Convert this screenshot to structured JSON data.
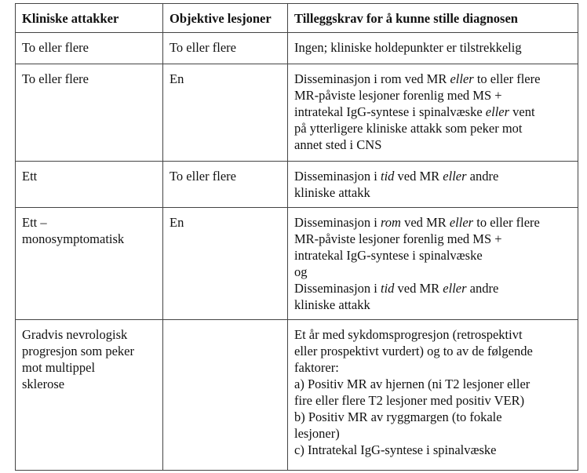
{
  "headers": [
    "Kliniske attakker",
    "Objektive lesjoner",
    "Tilleggskrav for å kunne stille diagnosen"
  ],
  "rows": [
    {
      "attacks": [
        "To eller flere"
      ],
      "lesions": "To eller flere",
      "requirement": [
        [
          {
            "t": "Ingen; kliniske holdepunkter er tilstrekkelig"
          }
        ]
      ]
    },
    {
      "attacks": [
        "To eller flere"
      ],
      "lesions": "En",
      "requirement": [
        [
          {
            "t": "Disseminasjon i rom ved MR "
          },
          {
            "t": "eller",
            "i": true
          },
          {
            "t": " to eller flere"
          }
        ],
        [
          {
            "t": "MR-påviste lesjoner forenlig med MS +"
          }
        ],
        [
          {
            "t": "intratekal IgG-syntese i spinalvæske "
          },
          {
            "t": "eller",
            "i": true
          },
          {
            "t": " vent"
          }
        ],
        [
          {
            "t": "på ytterligere kliniske attakk som peker mot"
          }
        ],
        [
          {
            "t": "annet sted i CNS"
          }
        ]
      ]
    },
    {
      "attacks": [
        "Ett"
      ],
      "lesions": "To eller flere",
      "requirement": [
        [
          {
            "t": "Disseminasjon i "
          },
          {
            "t": "tid",
            "i": true
          },
          {
            "t": " ved MR "
          },
          {
            "t": "eller",
            "i": true
          },
          {
            "t": " andre"
          }
        ],
        [
          {
            "t": "kliniske attakk"
          }
        ]
      ]
    },
    {
      "attacks": [
        "Ett –",
        "monosymptomatisk"
      ],
      "lesions": "En",
      "requirement": [
        [
          {
            "t": "Disseminasjon i "
          },
          {
            "t": "rom",
            "i": true
          },
          {
            "t": " ved MR "
          },
          {
            "t": "eller",
            "i": true
          },
          {
            "t": " to eller flere"
          }
        ],
        [
          {
            "t": "MR-påviste lesjoner forenlig med MS +"
          }
        ],
        [
          {
            "t": "intratekal IgG-syntese i spinalvæske"
          }
        ],
        [
          {
            "t": "og"
          }
        ],
        [
          {
            "t": "Disseminasjon i "
          },
          {
            "t": "tid",
            "i": true
          },
          {
            "t": " ved MR "
          },
          {
            "t": "eller",
            "i": true
          },
          {
            "t": " andre"
          }
        ],
        [
          {
            "t": "kliniske attakk"
          }
        ]
      ]
    },
    {
      "attacks": [
        "Gradvis nevrologisk",
        "progresjon som peker",
        "mot multippel",
        "sklerose"
      ],
      "lesions": "",
      "requirement": [
        [
          {
            "t": "Et år med sykdomsprogresjon (retrospektivt"
          }
        ],
        [
          {
            "t": "eller prospektivt vurdert) og to av de følgende"
          }
        ],
        [
          {
            "t": "faktorer:"
          }
        ],
        [
          {
            "t": "a) Positiv MR av hjernen (ni T2 lesjoner eller"
          }
        ],
        [
          {
            "t": "fire eller flere T2 lesjoner med positiv VER)"
          }
        ],
        [
          {
            "t": "b) Positiv MR av ryggmargen (to fokale"
          }
        ],
        [
          {
            "t": "lesjoner)"
          }
        ],
        [
          {
            "t": "c) Intratekal IgG-syntese i spinalvæske"
          }
        ]
      ]
    }
  ]
}
